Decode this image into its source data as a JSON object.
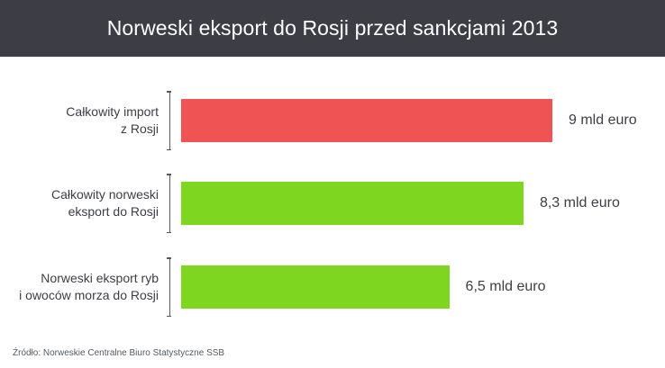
{
  "header": {
    "title": "Norweski eksport do Rosji przed sankcjami 2013"
  },
  "footer": {
    "source": "Źródło: Norweskie Centralne Biuro Statystyczne SSB"
  },
  "colors": {
    "header_bg": "#3d3e45",
    "import": "#ef5353",
    "export": "#7ed620"
  },
  "chart_data": {
    "type": "bar",
    "orientation": "horizontal",
    "title": "Norweski eksport do Rosji przed sankcjami 2013",
    "categories": [
      "Całkowity import\nz Rosji",
      "Całkowity norweski\neksport do Rosji",
      "Norweski eksport ryb\ni owoców morza do Rosji"
    ],
    "values": [
      9,
      8.3,
      6.5
    ],
    "value_labels": [
      "9 mld euro",
      "8,3 mld euro",
      "6,5 mld euro"
    ],
    "unit": "mld euro",
    "bar_colors": [
      "#ef5353",
      "#7ed620",
      "#7ed620"
    ],
    "grid": false,
    "legend": "none"
  }
}
